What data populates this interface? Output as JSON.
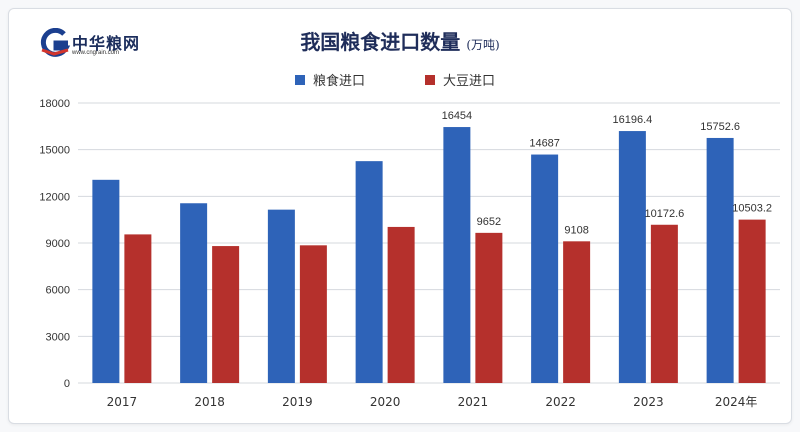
{
  "logo": {
    "text": "中华粮网",
    "subtext": "www.cngrain.com"
  },
  "colors": {
    "grain": "#2e63b8",
    "soy": "#b5302c",
    "grid": "#d4d8de",
    "axis_text": "#333333"
  },
  "chart_data": {
    "type": "bar",
    "title": "我国粮食进口数量",
    "unit": "(万吨)",
    "categories": [
      "2017",
      "2018",
      "2019",
      "2020",
      "2021",
      "2022",
      "2023",
      "2024年"
    ],
    "series": [
      {
        "name": "粮食进口",
        "values": [
          13062,
          11555,
          11144,
          14262,
          16454,
          14687,
          16196.4,
          15752.6
        ],
        "labels": [
          "",
          "",
          "",
          "",
          "16454",
          "14687",
          "16196.4",
          "15752.6"
        ]
      },
      {
        "name": "大豆进口",
        "values": [
          9553,
          8803,
          8851,
          10033,
          9652,
          9108,
          10172.6,
          10503.2
        ],
        "labels": [
          "",
          "",
          "",
          "",
          "9652",
          "9108",
          "10172.6",
          "10503.2"
        ]
      }
    ],
    "yticks": [
      "0",
      "3000",
      "6000",
      "9000",
      "12000",
      "15000",
      "18000"
    ],
    "ylim": [
      0,
      18000
    ],
    "grid": true,
    "legend": "top-center"
  }
}
